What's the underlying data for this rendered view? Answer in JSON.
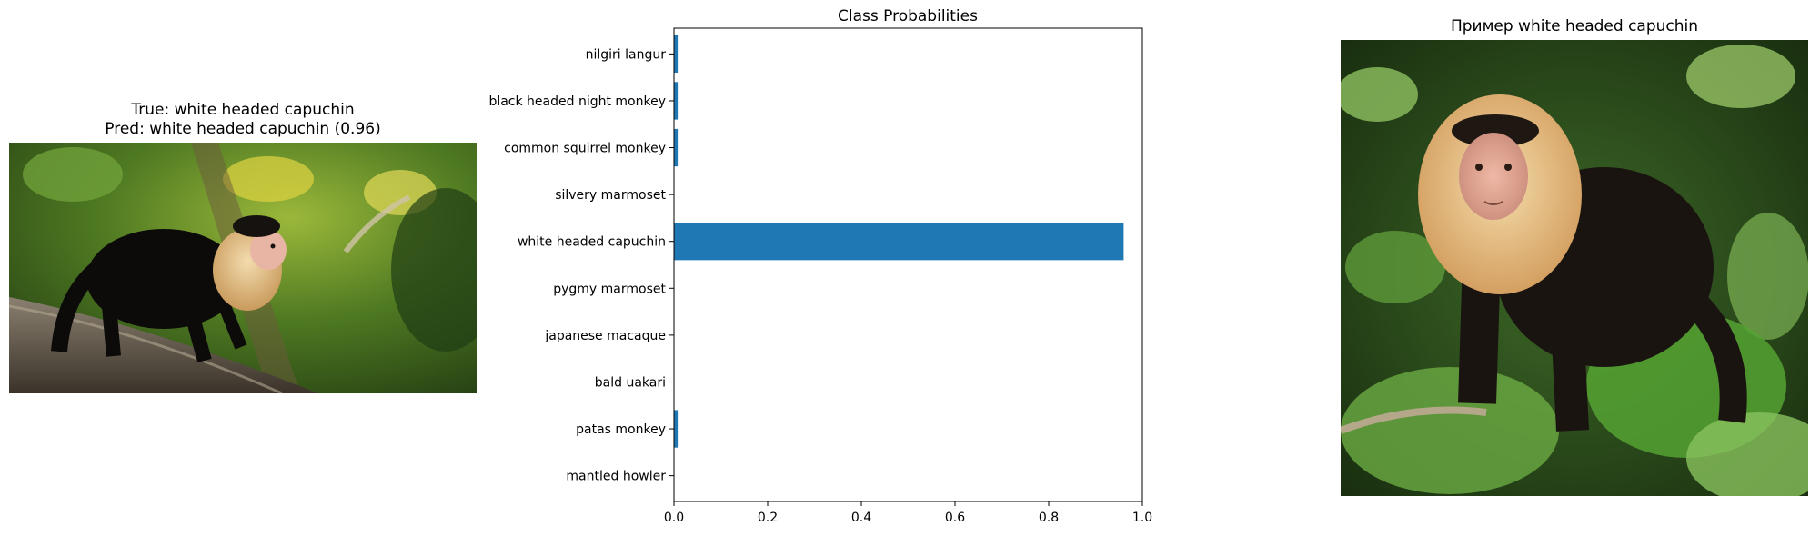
{
  "left_panel": {
    "title_line1": "True: white headed capuchin",
    "title_line2": "Pred: white headed capuchin (0.96)"
  },
  "right_panel": {
    "title": "Пример white headed capuchin"
  },
  "chart_data": {
    "type": "bar",
    "orientation": "horizontal",
    "title": "Class Probabilities",
    "xlabel": "",
    "ylabel": "",
    "xlim": [
      0,
      1.0
    ],
    "xticks": [
      "0.0",
      "0.2",
      "0.4",
      "0.6",
      "0.8",
      "1.0"
    ],
    "categories": [
      "mantled howler",
      "patas monkey",
      "bald uakari",
      "japanese macaque",
      "pygmy marmoset",
      "white headed capuchin",
      "silvery marmoset",
      "common squirrel monkey",
      "black headed night monkey",
      "nilgiri langur"
    ],
    "values": [
      0.001,
      0.008,
      0.001,
      0.001,
      0.001,
      0.96,
      0.001,
      0.008,
      0.008,
      0.008
    ],
    "bar_color": "#1f77b4",
    "grid": false
  }
}
